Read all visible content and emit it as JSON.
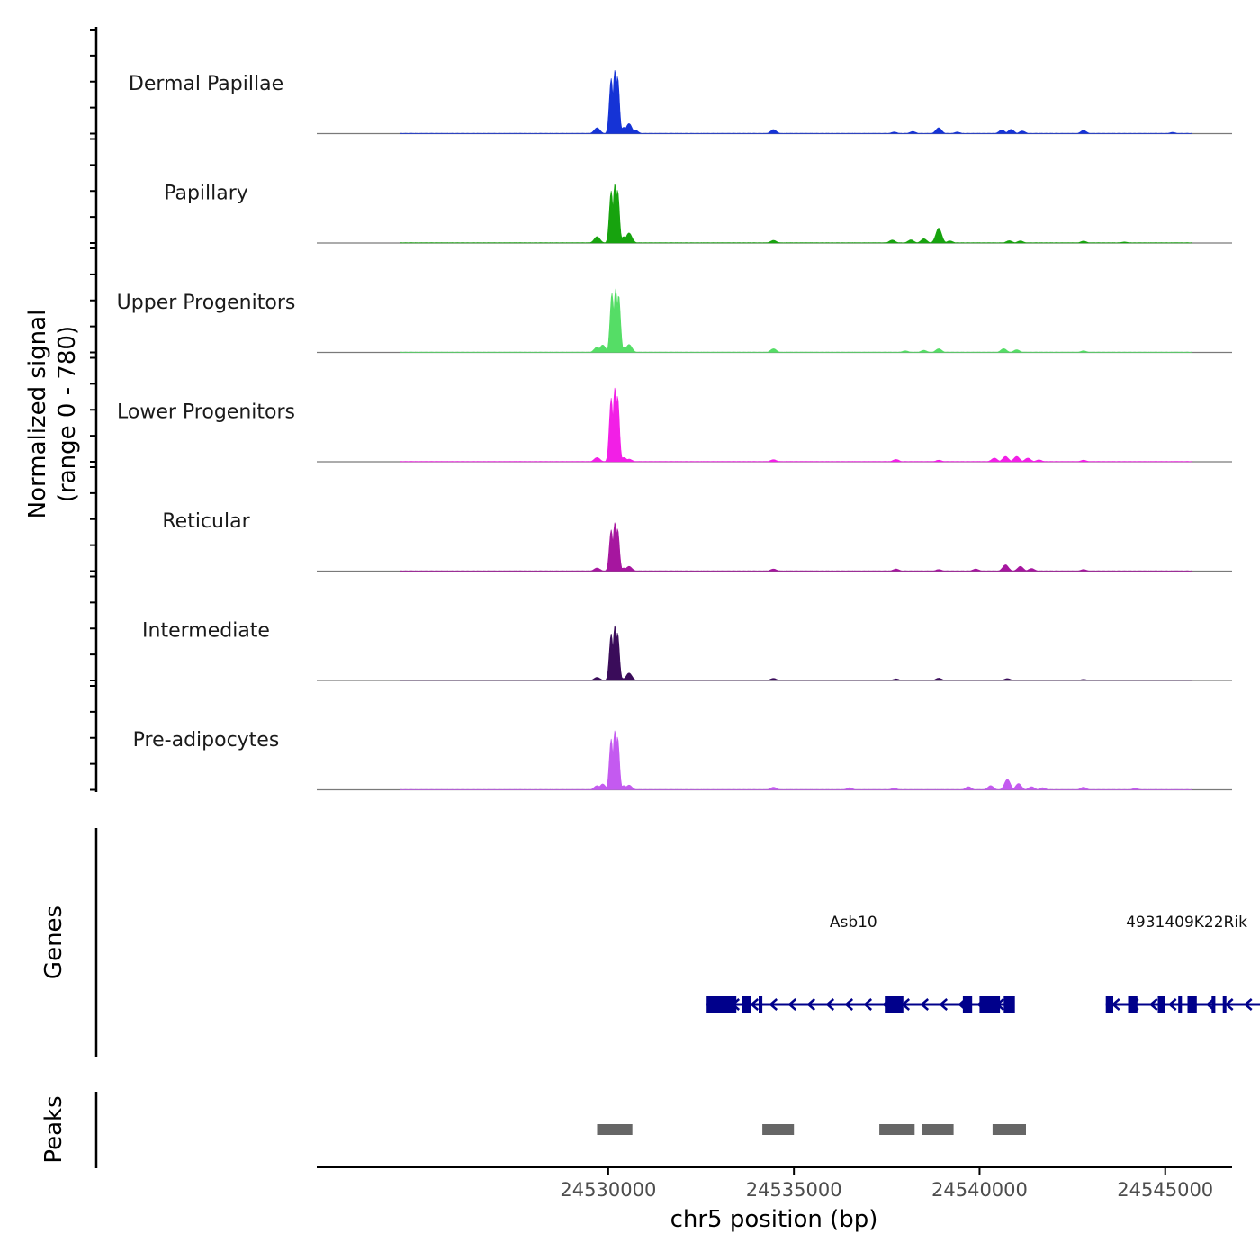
{
  "chart_data": {
    "type": "area",
    "ylabel": "Normalized signal",
    "ylabel_range": "(range 0 - 780)",
    "y_range": [
      0,
      780
    ],
    "xlabel": "chr5 position (bp)",
    "x_range": [
      24522150,
      24546800
    ],
    "x_ticks": [
      24530000,
      24535000,
      24540000,
      24545000
    ],
    "x_tick_labels": [
      "24530000",
      "24535000",
      "24540000",
      "24545000"
    ],
    "tracks": [
      {
        "name": "Dermal Papillae",
        "color": "#1533d6",
        "peaks": [
          {
            "x": 24529700,
            "y": 55
          },
          {
            "x": 24530080,
            "y": 520
          },
          {
            "x": 24530180,
            "y": 600
          },
          {
            "x": 24530250,
            "y": 540
          },
          {
            "x": 24530420,
            "y": 60
          },
          {
            "x": 24530560,
            "y": 95
          },
          {
            "x": 24530720,
            "y": 35
          },
          {
            "x": 24534450,
            "y": 38
          },
          {
            "x": 24537700,
            "y": 15
          },
          {
            "x": 24538200,
            "y": 20
          },
          {
            "x": 24538900,
            "y": 55
          },
          {
            "x": 24539400,
            "y": 15
          },
          {
            "x": 24540600,
            "y": 35
          },
          {
            "x": 24540850,
            "y": 40
          },
          {
            "x": 24541150,
            "y": 25
          },
          {
            "x": 24542800,
            "y": 30
          },
          {
            "x": 24545200,
            "y": 12
          },
          {
            "x": 24545900,
            "y": 10
          }
        ]
      },
      {
        "name": "Papillary",
        "color": "#17a30e",
        "peaks": [
          {
            "x": 24529700,
            "y": 60
          },
          {
            "x": 24530080,
            "y": 490
          },
          {
            "x": 24530180,
            "y": 560
          },
          {
            "x": 24530250,
            "y": 500
          },
          {
            "x": 24530420,
            "y": 60
          },
          {
            "x": 24530560,
            "y": 95
          },
          {
            "x": 24534450,
            "y": 25
          },
          {
            "x": 24537650,
            "y": 28
          },
          {
            "x": 24538150,
            "y": 30
          },
          {
            "x": 24538500,
            "y": 40
          },
          {
            "x": 24538900,
            "y": 140
          },
          {
            "x": 24539200,
            "y": 20
          },
          {
            "x": 24540800,
            "y": 22
          },
          {
            "x": 24541100,
            "y": 20
          },
          {
            "x": 24542800,
            "y": 18
          },
          {
            "x": 24543900,
            "y": 10
          }
        ]
      },
      {
        "name": "Upper Progenitors",
        "color": "#55dd66",
        "peaks": [
          {
            "x": 24529700,
            "y": 50
          },
          {
            "x": 24529850,
            "y": 70
          },
          {
            "x": 24530100,
            "y": 560
          },
          {
            "x": 24530200,
            "y": 600
          },
          {
            "x": 24530280,
            "y": 540
          },
          {
            "x": 24530420,
            "y": 50
          },
          {
            "x": 24530560,
            "y": 75
          },
          {
            "x": 24534450,
            "y": 35
          },
          {
            "x": 24538000,
            "y": 15
          },
          {
            "x": 24538500,
            "y": 20
          },
          {
            "x": 24538900,
            "y": 35
          },
          {
            "x": 24540650,
            "y": 35
          },
          {
            "x": 24541000,
            "y": 25
          },
          {
            "x": 24542800,
            "y": 15
          }
        ]
      },
      {
        "name": "Lower Progenitors",
        "color": "#f21fe6",
        "peaks": [
          {
            "x": 24529700,
            "y": 40
          },
          {
            "x": 24530080,
            "y": 600
          },
          {
            "x": 24530180,
            "y": 700
          },
          {
            "x": 24530250,
            "y": 620
          },
          {
            "x": 24530420,
            "y": 40
          },
          {
            "x": 24530560,
            "y": 25
          },
          {
            "x": 24534450,
            "y": 20
          },
          {
            "x": 24537750,
            "y": 22
          },
          {
            "x": 24538900,
            "y": 15
          },
          {
            "x": 24540400,
            "y": 35
          },
          {
            "x": 24540700,
            "y": 50
          },
          {
            "x": 24541000,
            "y": 50
          },
          {
            "x": 24541300,
            "y": 35
          },
          {
            "x": 24541600,
            "y": 18
          },
          {
            "x": 24542800,
            "y": 15
          }
        ]
      },
      {
        "name": "Reticular",
        "color": "#a6169f",
        "peaks": [
          {
            "x": 24529700,
            "y": 30
          },
          {
            "x": 24530080,
            "y": 390
          },
          {
            "x": 24530180,
            "y": 460
          },
          {
            "x": 24530250,
            "y": 400
          },
          {
            "x": 24530420,
            "y": 30
          },
          {
            "x": 24530560,
            "y": 45
          },
          {
            "x": 24534450,
            "y": 20
          },
          {
            "x": 24537750,
            "y": 20
          },
          {
            "x": 24538900,
            "y": 15
          },
          {
            "x": 24539900,
            "y": 20
          },
          {
            "x": 24540700,
            "y": 60
          },
          {
            "x": 24541100,
            "y": 45
          },
          {
            "x": 24541400,
            "y": 25
          },
          {
            "x": 24542800,
            "y": 15
          }
        ]
      },
      {
        "name": "Intermediate",
        "color": "#3a0c5a",
        "peaks": [
          {
            "x": 24529700,
            "y": 30
          },
          {
            "x": 24530080,
            "y": 440
          },
          {
            "x": 24530180,
            "y": 520
          },
          {
            "x": 24530250,
            "y": 450
          },
          {
            "x": 24530420,
            "y": 20
          },
          {
            "x": 24530560,
            "y": 70
          },
          {
            "x": 24534450,
            "y": 20
          },
          {
            "x": 24537750,
            "y": 15
          },
          {
            "x": 24538900,
            "y": 22
          },
          {
            "x": 24540750,
            "y": 18
          },
          {
            "x": 24542800,
            "y": 10
          }
        ]
      },
      {
        "name": "Pre-adipocytes",
        "color": "#c45af0",
        "peaks": [
          {
            "x": 24529700,
            "y": 40
          },
          {
            "x": 24529850,
            "y": 55
          },
          {
            "x": 24530080,
            "y": 480
          },
          {
            "x": 24530180,
            "y": 560
          },
          {
            "x": 24530250,
            "y": 500
          },
          {
            "x": 24530420,
            "y": 40
          },
          {
            "x": 24530560,
            "y": 45
          },
          {
            "x": 24534450,
            "y": 25
          },
          {
            "x": 24536500,
            "y": 20
          },
          {
            "x": 24537700,
            "y": 15
          },
          {
            "x": 24539700,
            "y": 30
          },
          {
            "x": 24540300,
            "y": 40
          },
          {
            "x": 24540750,
            "y": 100
          },
          {
            "x": 24541050,
            "y": 60
          },
          {
            "x": 24541400,
            "y": 30
          },
          {
            "x": 24541700,
            "y": 20
          },
          {
            "x": 24542800,
            "y": 25
          },
          {
            "x": 24544200,
            "y": 15
          }
        ]
      }
    ],
    "genes_label": "Genes",
    "gene_color": "#00008b",
    "genes": [
      {
        "name": "Asb10",
        "start": 24532650,
        "end": 24540800,
        "strand": "-",
        "exons": [
          [
            24532650,
            24533450
          ],
          [
            24533600,
            24533850
          ],
          [
            24534050,
            24534150
          ],
          [
            24537450,
            24537950
          ],
          [
            24539550,
            24539800
          ],
          [
            24540000,
            24540550
          ],
          [
            24540650,
            24540950
          ]
        ]
      },
      {
        "name": "4931409K22Rik",
        "start": 24543400,
        "end": 24547750,
        "strand": "-",
        "exons": [
          [
            24543400,
            24543600
          ],
          [
            24544000,
            24544250
          ],
          [
            24544800,
            24545000
          ],
          [
            24545350,
            24545450
          ],
          [
            24545600,
            24545850
          ],
          [
            24546250,
            24546350
          ],
          [
            24546550,
            24546600
          ]
        ]
      }
    ],
    "peaks_label": "Peaks",
    "peak_color": "#666666",
    "peak_regions": [
      [
        24529700,
        24530650
      ],
      [
        24534150,
        24535000
      ],
      [
        24537300,
        24538250
      ],
      [
        24538450,
        24539300
      ],
      [
        24540350,
        24541250
      ]
    ]
  }
}
